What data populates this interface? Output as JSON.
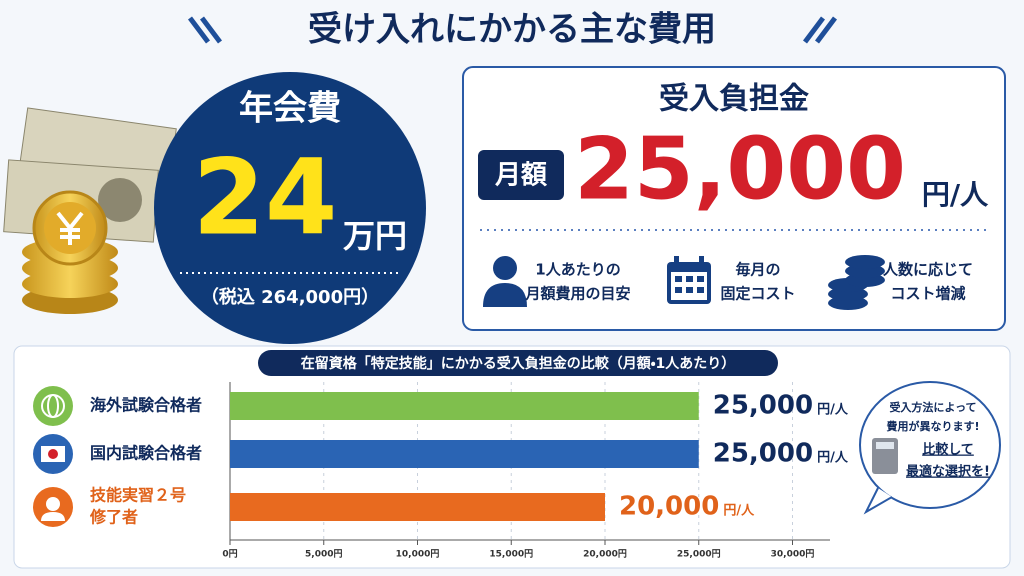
{
  "header": {
    "title": "受け入れにかかる主な費用"
  },
  "annual_fee": {
    "label": "年会費",
    "amount": "24",
    "unit": "万円",
    "tax_note": "（税込 264,000円）"
  },
  "monthly": {
    "title": "受入負担金",
    "badge": "月額",
    "amount": "25,000",
    "unit": "円/人",
    "features": [
      {
        "lines": [
          "1人あたりの",
          "月額費用の目安"
        ]
      },
      {
        "lines": [
          "毎月の",
          "固定コスト"
        ]
      },
      {
        "lines": [
          "人数に応じて",
          "コスト増減"
        ]
      }
    ]
  },
  "chart_data": {
    "type": "bar",
    "orientation": "horizontal",
    "title": "在留資格「特定技能」にかかる受入負担金の比較（月額・1人あたり）",
    "categories": [
      [
        "海外試験合格者"
      ],
      [
        "国内試験合格者"
      ],
      [
        "技能実習２号",
        "修了者"
      ]
    ],
    "values": [
      25000,
      25000,
      20000
    ],
    "value_labels": [
      "25,000",
      "25,000",
      "20,000"
    ],
    "value_unit": "円/人",
    "colors": [
      "#7fbf4d",
      "#2a64b4",
      "#e86a1f"
    ],
    "label_colors": [
      "#102a5c",
      "#102a5c",
      "#e0621a"
    ],
    "xlim": [
      0,
      32000
    ],
    "xticks": [
      {
        "value": 0,
        "label": "0円"
      },
      {
        "value": 5000,
        "label": "5,000円"
      },
      {
        "value": 10000,
        "label": "10,000円"
      },
      {
        "value": 15000,
        "label": "15,000円"
      },
      {
        "value": 20000,
        "label": "20,000円"
      },
      {
        "value": 25000,
        "label": "25,000円"
      },
      {
        "value": 30000,
        "label": "30,000円"
      }
    ],
    "grid": true
  },
  "callout": {
    "lines": [
      "受入方法によって",
      "費用が異なります!"
    ],
    "highlight": [
      "比較して",
      "最適な選択を!"
    ]
  }
}
